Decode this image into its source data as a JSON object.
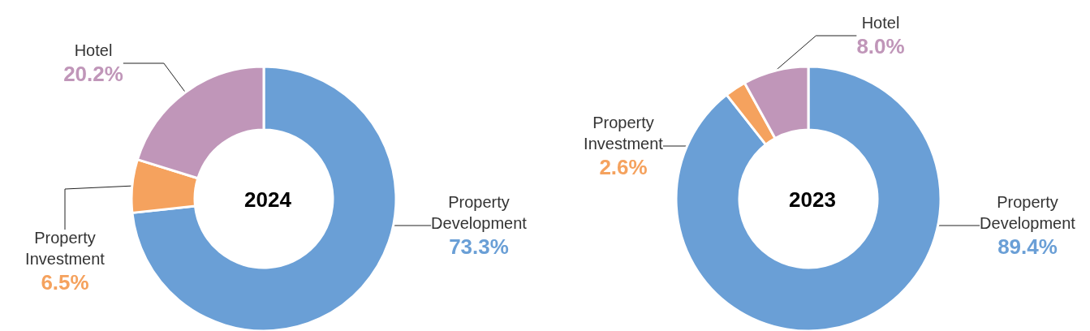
{
  "chart_data": [
    {
      "type": "donut",
      "title": "2024",
      "categories": [
        "Property Development",
        "Property Investment",
        "Hotel"
      ],
      "values": [
        73.3,
        6.5,
        20.2
      ],
      "colors": [
        "#6a9fd6",
        "#f5a25e",
        "#c096b9"
      ],
      "value_labels": [
        "73.3%",
        "6.5%",
        "20.2%"
      ],
      "legend": false
    },
    {
      "type": "donut",
      "title": "2023",
      "categories": [
        "Property Development",
        "Property Investment",
        "Hotel"
      ],
      "values": [
        89.4,
        2.6,
        8.0
      ],
      "colors": [
        "#6a9fd6",
        "#f5a25e",
        "#c096b9"
      ],
      "value_labels": [
        "89.4%",
        "2.6%",
        "8.0%"
      ],
      "legend": false
    }
  ]
}
